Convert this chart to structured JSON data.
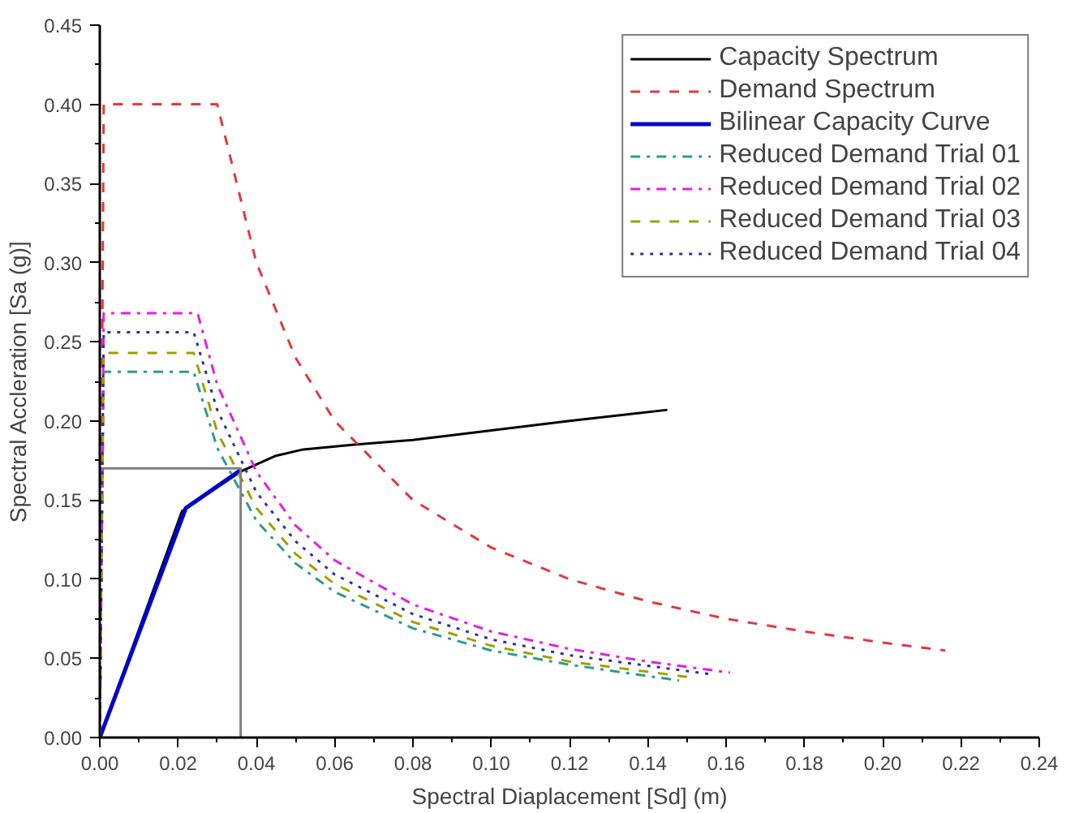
{
  "chart_data": {
    "type": "line",
    "xlabel": "Spectral Diaplacement [Sd] (m)",
    "ylabel": "Spectral Accleration [Sa (g)]",
    "xlim": [
      0,
      0.24
    ],
    "ylim": [
      0,
      0.45
    ],
    "xticks": [
      {
        "value": 0,
        "label": "0.00"
      },
      {
        "value": 0.02,
        "label": "0.02"
      },
      {
        "value": 0.04,
        "label": "0.04"
      },
      {
        "value": 0.06,
        "label": "0.06"
      },
      {
        "value": 0.08,
        "label": "0.08"
      },
      {
        "value": 0.1,
        "label": "0.10"
      },
      {
        "value": 0.12,
        "label": "0.12"
      },
      {
        "value": 0.14,
        "label": "0.14"
      },
      {
        "value": 0.16,
        "label": "0.16"
      },
      {
        "value": 0.18,
        "label": "0.18"
      },
      {
        "value": 0.2,
        "label": "0.20"
      },
      {
        "value": 0.22,
        "label": "0.22"
      },
      {
        "value": 0.24,
        "label": "0.24"
      }
    ],
    "yticks": [
      {
        "value": 0,
        "label": "0.00"
      },
      {
        "value": 0.05,
        "label": "0.05"
      },
      {
        "value": 0.1,
        "label": "0.10"
      },
      {
        "value": 0.15,
        "label": "0.15"
      },
      {
        "value": 0.2,
        "label": "0.20"
      },
      {
        "value": 0.25,
        "label": "0.25"
      },
      {
        "value": 0.3,
        "label": "0.30"
      },
      {
        "value": 0.35,
        "label": "0.35"
      },
      {
        "value": 0.4,
        "label": "0.40"
      },
      {
        "value": 0.45,
        "label": "0.45"
      }
    ],
    "grid": false,
    "legend": "top right",
    "series": [
      {
        "name": "Capacity Spectrum",
        "color": "#000000",
        "line_style": "solid",
        "x": [
          0,
          0.021,
          0.036,
          0.045,
          0.052,
          0.065,
          0.08,
          0.1,
          0.12,
          0.145
        ],
        "values": [
          0,
          0.143,
          0.168,
          0.178,
          0.182,
          0.185,
          0.188,
          0.194,
          0.2,
          0.207
        ]
      },
      {
        "name": "Demand Spectrum",
        "color": "#e0393e",
        "line_style": "dashed",
        "x": [
          0,
          0.001,
          0.03,
          0.04,
          0.05,
          0.06,
          0.08,
          0.1,
          0.12,
          0.14,
          0.16,
          0.18,
          0.2,
          0.216
        ],
        "values": [
          0,
          0.4,
          0.4,
          0.3,
          0.24,
          0.2,
          0.15,
          0.12,
          0.1,
          0.086,
          0.075,
          0.067,
          0.06,
          0.055
        ]
      },
      {
        "name": "Bilinear Capacity Curve",
        "color": "#0000cc",
        "line_style": "solid",
        "x": [
          0,
          0.022,
          0.036
        ],
        "values": [
          0,
          0.145,
          0.169
        ]
      },
      {
        "name": "Reduced Demand Trial 01",
        "color": "#2a9d8f",
        "line_style": "dashdot",
        "x": [
          0,
          0.001,
          0.024,
          0.03,
          0.04,
          0.05,
          0.06,
          0.08,
          0.1,
          0.12,
          0.148
        ],
        "values": [
          0,
          0.231,
          0.231,
          0.183,
          0.137,
          0.11,
          0.092,
          0.069,
          0.055,
          0.046,
          0.036
        ]
      },
      {
        "name": "Reduced Demand Trial 02",
        "color": "#e020e0",
        "line_style": "dashdot",
        "x": [
          0,
          0.001,
          0.025,
          0.03,
          0.04,
          0.05,
          0.06,
          0.08,
          0.1,
          0.12,
          0.14,
          0.161
        ],
        "values": [
          0,
          0.268,
          0.268,
          0.223,
          0.168,
          0.134,
          0.112,
          0.084,
          0.067,
          0.056,
          0.048,
          0.041
        ]
      },
      {
        "name": "Reduced Demand Trial 03",
        "color": "#a0a000",
        "line_style": "dashed",
        "x": [
          0,
          0.001,
          0.024,
          0.03,
          0.04,
          0.05,
          0.06,
          0.08,
          0.1,
          0.12,
          0.151
        ],
        "values": [
          0,
          0.243,
          0.243,
          0.193,
          0.145,
          0.116,
          0.097,
          0.073,
          0.058,
          0.048,
          0.038
        ]
      },
      {
        "name": "Reduced Demand Trial 04",
        "color": "#3030a0",
        "line_style": "dotted",
        "x": [
          0,
          0.001,
          0.024,
          0.03,
          0.04,
          0.05,
          0.06,
          0.08,
          0.1,
          0.12,
          0.156
        ],
        "values": [
          0,
          0.256,
          0.256,
          0.207,
          0.155,
          0.124,
          0.103,
          0.078,
          0.062,
          0.052,
          0.04
        ]
      },
      {
        "color": "#808080",
        "line_style": "solid",
        "x": [
          0,
          0.036,
          0.036
        ],
        "values": [
          0.17,
          0.17,
          0
        ]
      }
    ]
  }
}
